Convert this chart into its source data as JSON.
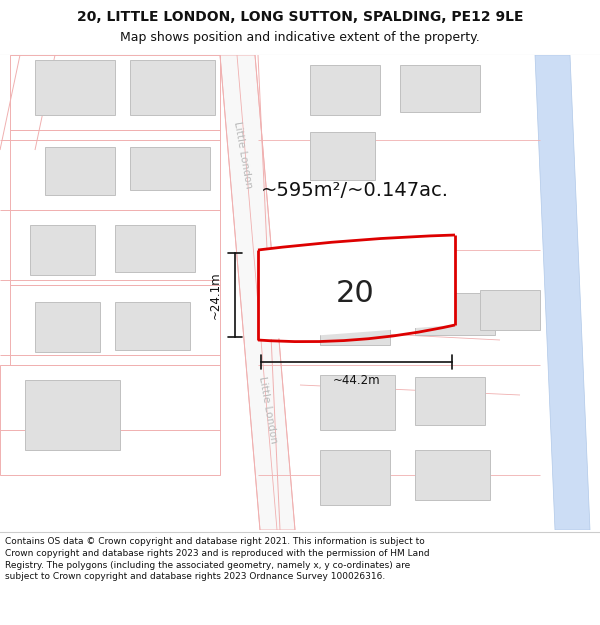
{
  "title_line1": "20, LITTLE LONDON, LONG SUTTON, SPALDING, PE12 9LE",
  "title_line2": "Map shows position and indicative extent of the property.",
  "area_text": "~595m²/~0.147ac.",
  "label_number": "20",
  "dim_height": "~24.1m",
  "dim_width": "~44.2m",
  "street_label": "Little London",
  "footer_text": "Contains OS data © Crown copyright and database right 2021. This information is subject to Crown copyright and database rights 2023 and is reproduced with the permission of HM Land Registry. The polygons (including the associated geometry, namely x, y co-ordinates) are subject to Crown copyright and database rights 2023 Ordnance Survey 100026316.",
  "bg_color": "#ffffff",
  "building_fill": "#e0e0e0",
  "building_edge": "#c0c0c0",
  "road_outline": "#f0b0b0",
  "highlight_edge": "#dd0000",
  "rail_fill": "#ccddf5",
  "rail_edge": "#b0c8e8",
  "dim_color": "#111111",
  "street_text_color": "#aaaaaa",
  "header_bg": "#ffffff",
  "footer_bg": "#ffffff"
}
